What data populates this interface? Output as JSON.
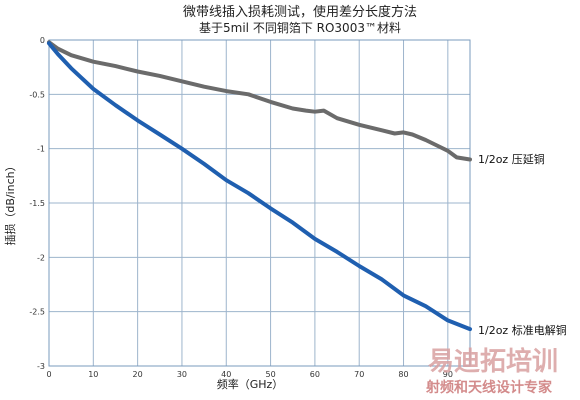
{
  "chart_data": {
    "type": "line",
    "title": "微带线插入损耗测试，使用差分长度方法",
    "subtitle": "基于5mil 不同铜箔下 RO3003™材料",
    "xlabel": "频率（GHz）",
    "ylabel": "插损（dB/inch）",
    "xlim": [
      0,
      95
    ],
    "ylim": [
      -3,
      0
    ],
    "xticks": [
      0,
      10,
      20,
      30,
      40,
      50,
      60,
      70,
      80,
      90
    ],
    "yticks": [
      0,
      -0.5,
      -1,
      -1.5,
      -2,
      -2.5,
      -3
    ],
    "ytick_labels": [
      "0",
      "-0.5",
      "-1",
      "-1.5",
      "-2",
      "-2.5",
      "-3"
    ],
    "grid": true,
    "series": [
      {
        "name": "1/2oz 压延铜",
        "color": "#6b6b6b",
        "x": [
          0,
          2,
          5,
          10,
          15,
          20,
          25,
          30,
          35,
          40,
          45,
          50,
          55,
          58,
          60,
          62,
          65,
          70,
          75,
          78,
          80,
          82,
          85,
          88,
          90,
          92,
          95
        ],
        "y": [
          -0.02,
          -0.08,
          -0.14,
          -0.2,
          -0.24,
          -0.29,
          -0.33,
          -0.38,
          -0.43,
          -0.47,
          -0.5,
          -0.57,
          -0.63,
          -0.65,
          -0.66,
          -0.65,
          -0.72,
          -0.78,
          -0.83,
          -0.86,
          -0.85,
          -0.87,
          -0.92,
          -0.98,
          -1.02,
          -1.08,
          -1.1
        ]
      },
      {
        "name": "1/2oz 标准电解铜",
        "color": "#1f5fb0",
        "x": [
          0,
          2,
          5,
          10,
          15,
          20,
          25,
          30,
          35,
          40,
          45,
          50,
          55,
          60,
          65,
          70,
          75,
          80,
          85,
          90,
          95
        ],
        "y": [
          -0.03,
          -0.13,
          -0.26,
          -0.45,
          -0.6,
          -0.74,
          -0.87,
          -1.0,
          -1.14,
          -1.29,
          -1.41,
          -1.55,
          -1.68,
          -1.83,
          -1.95,
          -2.08,
          -2.2,
          -2.35,
          -2.45,
          -2.58,
          -2.66
        ]
      }
    ]
  },
  "watermark": {
    "main": "易迪拓培训",
    "sub": "射频和天线设计专家"
  }
}
